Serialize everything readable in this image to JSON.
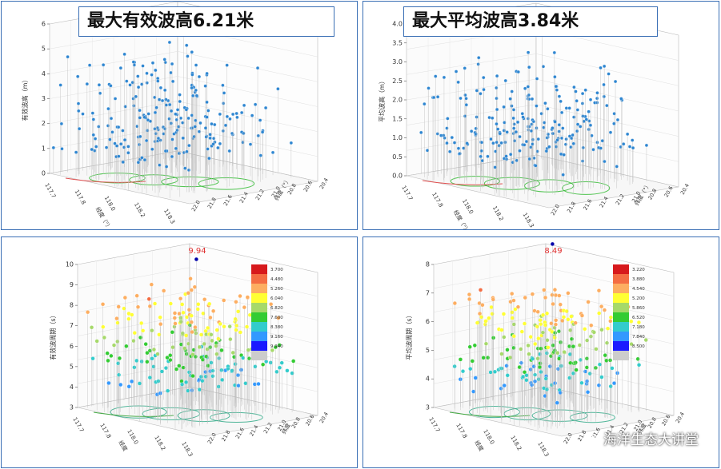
{
  "panels": [
    {
      "id": "p1",
      "title": "最大有效波高6.21米",
      "y_axis_label": "有效波高（m）",
      "y_ticks": [
        "0",
        "1",
        "2",
        "3",
        "4",
        "5",
        "6"
      ],
      "x_axis_label": "经度（°）",
      "x_ticks": [
        "117.7",
        "117.8",
        "118.0",
        "118.2",
        "118.3"
      ],
      "z_axis_label": "纬度（°）",
      "z_ticks": [
        "20.4",
        "20.6",
        "20.8",
        "21.0",
        "21.2",
        "21.4",
        "21.6",
        "21.8",
        "22.0"
      ],
      "max_label": ""
    },
    {
      "id": "p2",
      "title": "最大平均波高3.84米",
      "y_axis_label": "平均波高（m）",
      "y_ticks": [
        "0.0",
        "0.5",
        "1.0",
        "1.5",
        "2.0",
        "2.5",
        "3.0",
        "3.5",
        "4.0"
      ],
      "x_axis_label": "经度（°）",
      "x_ticks": [
        "117.7",
        "117.8",
        "118.0",
        "118.2",
        "118.3"
      ],
      "z_axis_label": "纬度（°）",
      "z_ticks": [
        "20.4",
        "20.6",
        "20.8",
        "21.0",
        "21.2",
        "21.4",
        "21.6",
        "21.8",
        "22.0"
      ],
      "max_label": ""
    },
    {
      "id": "p3",
      "title": "",
      "y_axis_label": "有效波周期（s）",
      "y_ticks": [
        "3",
        "4",
        "5",
        "6",
        "7",
        "8",
        "9",
        "10"
      ],
      "x_axis_label": "经度",
      "x_ticks": [
        "117.7",
        "117.8",
        "118.0",
        "118.2",
        "118.3"
      ],
      "z_axis_label": "纬度",
      "z_ticks": [
        "20.4",
        "20.6",
        "20.8",
        "21.0",
        "21.2",
        "21.4",
        "21.6",
        "21.8",
        "22.0"
      ],
      "max_label": "9.94",
      "legend": [
        "3.700",
        "4.480",
        "5.260",
        "6.040",
        "6.820",
        "7.600",
        "8.380",
        "9.160",
        "9.940"
      ]
    },
    {
      "id": "p4",
      "title": "",
      "y_axis_label": "平均波周期（s）",
      "y_ticks": [
        "3",
        "4",
        "5",
        "6",
        "7",
        "8"
      ],
      "x_axis_label": "经度",
      "x_ticks": [
        "117.7",
        "117.8",
        "118.0",
        "118.2",
        "118.3"
      ],
      "z_axis_label": "纬度",
      "z_ticks": [
        "20.4",
        "20.6",
        "20.8",
        "21.0",
        "21.2",
        "21.4",
        "21.6",
        "21.8",
        "22.0"
      ],
      "max_label": "8.49",
      "legend": [
        "3.220",
        "3.880",
        "4.540",
        "5.200",
        "5.860",
        "6.520",
        "7.180",
        "7.840",
        "8.500"
      ]
    }
  ],
  "chart_data": [
    {
      "type": "scatter",
      "title": "最大有效波高6.21米",
      "ylabel": "有效波高（m）",
      "xlabel": "经度（°）",
      "zlabel": "纬度（°）",
      "ylim": [
        0,
        6
      ],
      "max_value": 6.21
    },
    {
      "type": "scatter",
      "title": "最大平均波高3.84米",
      "ylabel": "平均波高（m）",
      "xlabel": "经度（°）",
      "zlabel": "纬度（°）",
      "ylim": [
        0,
        4
      ],
      "max_value": 3.84
    },
    {
      "type": "scatter",
      "title": "",
      "ylabel": "有效波周期（s）",
      "xlabel": "经度",
      "zlabel": "纬度",
      "ylim": [
        3,
        10
      ],
      "max_value": 9.94,
      "colorbar": [
        3.7,
        4.48,
        5.26,
        6.04,
        6.82,
        7.6,
        8.38,
        9.16,
        9.94
      ]
    },
    {
      "type": "scatter",
      "title": "",
      "ylabel": "平均波周期（s）",
      "xlabel": "经度",
      "zlabel": "纬度",
      "ylim": [
        3,
        8
      ],
      "max_value": 8.49,
      "colorbar": [
        3.22,
        3.88,
        4.54,
        5.2,
        5.86,
        6.52,
        7.18,
        7.84,
        8.5
      ]
    }
  ],
  "colors": {
    "panel_border": "#3a6fb5",
    "point_blue": "#2e86d1",
    "track_green": "#33bb33",
    "max_red": "#e03030",
    "scale": [
      "#d7191c",
      "#f46d43",
      "#fdae61",
      "#ffff33",
      "#a6d96a",
      "#33cc33",
      "#33cccc",
      "#3399ff",
      "#1a1aff",
      "#0000aa",
      "#cccccc"
    ]
  },
  "watermark": "海洋生态大讲堂",
  "watermark_icon": "wechat-icon"
}
